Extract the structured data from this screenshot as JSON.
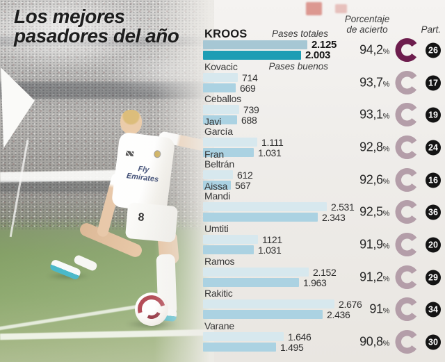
{
  "title": {
    "line1": "Los mejores",
    "line2": "pasadores del año"
  },
  "columns": {
    "accuracy_header": "Porcentaje\nde acierto",
    "part_header": "Part."
  },
  "series_labels": {
    "total": "Pases totales",
    "good": "Pases buenos"
  },
  "percent_symbol": "%",
  "players": [
    {
      "name": "KROOS",
      "total": 2125,
      "good": 2003,
      "total_label": "2.125",
      "good_label": "2.003",
      "pct": "94,2",
      "part": "26"
    },
    {
      "name": "Kovacic",
      "total": 714,
      "good": 669,
      "total_label": "714",
      "good_label": "669",
      "pct": "93,7",
      "part": "17"
    },
    {
      "name": "Ceballos",
      "total": 739,
      "good": 688,
      "total_label": "739",
      "good_label": "688",
      "pct": "93,1",
      "part": "19"
    },
    {
      "name": "Javi\nGarcía",
      "total": 1111,
      "good": 1031,
      "total_label": "1.111",
      "good_label": "1.031",
      "pct": "92,8",
      "part": "24"
    },
    {
      "name": "Fran\nBeltrán",
      "total": 612,
      "good": 567,
      "total_label": "612",
      "good_label": "567",
      "pct": "92,6",
      "part": "16"
    },
    {
      "name": "Aissa\nMandi",
      "total": 2531,
      "good": 2343,
      "total_label": "2.531",
      "good_label": "2.343",
      "pct": "92,5",
      "part": "36"
    },
    {
      "name": "Umtiti",
      "total": 1121,
      "good": 1031,
      "total_label": "1121",
      "good_label": "1.031",
      "pct": "91,9",
      "part": "20"
    },
    {
      "name": "Ramos",
      "total": 2152,
      "good": 1963,
      "total_label": "2.152",
      "good_label": "1.963",
      "pct": "91,2",
      "part": "29"
    },
    {
      "name": "Rakitic",
      "total": 2676,
      "good": 2436,
      "total_label": "2.676",
      "good_label": "2.436",
      "pct": "91",
      "part": "34"
    },
    {
      "name": "Varane",
      "total": 1646,
      "good": 1495,
      "total_label": "1.646",
      "good_label": "1.495",
      "pct": "90,8",
      "part": "30"
    }
  ],
  "photo": {
    "player_number": "8",
    "shirt_sponsor": "Fly Emirates"
  },
  "colors": {
    "total_bar": "#d7e8ee",
    "good_bar": "#abd2e2",
    "kroos_total_bar": "#a6c7d4",
    "kroos_good_bar": "#1d9db4",
    "ring": "#b49ea9",
    "ring_highlight": "#6d1d4d",
    "badge_bg": "#141414",
    "badge_text": "#ffffff"
  },
  "chart_data": {
    "type": "bar",
    "orientation": "horizontal",
    "title": "Los mejores pasadores del año",
    "categories": [
      "Kroos",
      "Kovacic",
      "Ceballos",
      "Javi García",
      "Fran Beltrán",
      "Aissa Mandi",
      "Umtiti",
      "Ramos",
      "Rakitic",
      "Varane"
    ],
    "series": [
      {
        "name": "Pases totales",
        "values": [
          2125,
          714,
          739,
          1111,
          612,
          2531,
          1121,
          2152,
          2676,
          1646
        ]
      },
      {
        "name": "Pases buenos",
        "values": [
          2003,
          669,
          688,
          1031,
          567,
          2343,
          1031,
          1963,
          2436,
          1495
        ]
      }
    ],
    "accuracy_percent": [
      94.2,
      93.7,
      93.1,
      92.8,
      92.6,
      92.5,
      91.9,
      91.2,
      91.0,
      90.8
    ],
    "participations": [
      26,
      17,
      19,
      24,
      16,
      36,
      20,
      29,
      34,
      30
    ],
    "xlim": [
      0,
      2700
    ],
    "grid": false,
    "value_labels_shown": true,
    "legend_position": "inline-first-two-rows",
    "highlighted_category": "Kroos"
  }
}
